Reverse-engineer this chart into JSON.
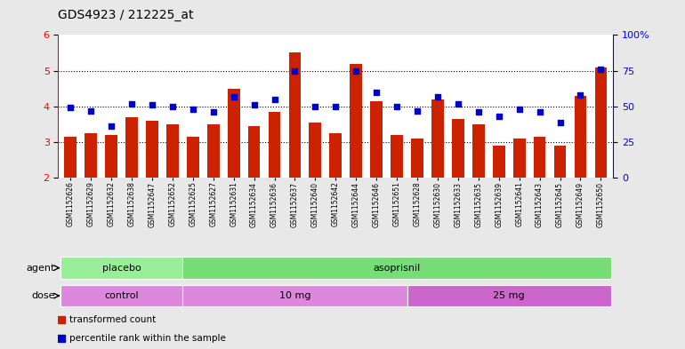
{
  "title": "GDS4923 / 212225_at",
  "samples": [
    "GSM1152626",
    "GSM1152629",
    "GSM1152632",
    "GSM1152638",
    "GSM1152647",
    "GSM1152652",
    "GSM1152625",
    "GSM1152627",
    "GSM1152631",
    "GSM1152634",
    "GSM1152636",
    "GSM1152637",
    "GSM1152640",
    "GSM1152642",
    "GSM1152644",
    "GSM1152646",
    "GSM1152651",
    "GSM1152628",
    "GSM1152630",
    "GSM1152633",
    "GSM1152635",
    "GSM1152639",
    "GSM1152641",
    "GSM1152643",
    "GSM1152645",
    "GSM1152649",
    "GSM1152650"
  ],
  "red_values": [
    3.15,
    3.25,
    3.2,
    3.7,
    3.6,
    3.5,
    3.15,
    3.5,
    4.5,
    3.45,
    3.85,
    5.5,
    3.55,
    3.25,
    5.2,
    4.15,
    3.2,
    3.1,
    4.2,
    3.65,
    3.5,
    2.9,
    3.1,
    3.15,
    2.9,
    4.3,
    5.1
  ],
  "blue_values": [
    49,
    47,
    36,
    52,
    51,
    50,
    48,
    46,
    57,
    51,
    55,
    75,
    50,
    50,
    75,
    60,
    50,
    47,
    57,
    52,
    46,
    43,
    48,
    46,
    39,
    58,
    76
  ],
  "ylim_left": [
    2,
    6
  ],
  "ylim_right": [
    0,
    100
  ],
  "yticks_left": [
    2,
    3,
    4,
    5,
    6
  ],
  "yticks_right": [
    0,
    25,
    50,
    75,
    100
  ],
  "bar_color": "#cc2200",
  "dot_color": "#0000cc",
  "background_color": "#e8e8e8",
  "plot_bg_color": "#ffffff",
  "agent_groups": [
    {
      "label": "placebo",
      "start": 0,
      "end": 6,
      "color": "#99ee99"
    },
    {
      "label": "asoprisnil",
      "start": 6,
      "end": 27,
      "color": "#77dd77"
    }
  ],
  "dose_groups": [
    {
      "label": "control",
      "start": 0,
      "end": 6,
      "color": "#dd88dd"
    },
    {
      "label": "10 mg",
      "start": 6,
      "end": 17,
      "color": "#dd88dd"
    },
    {
      "label": "25 mg",
      "start": 17,
      "end": 27,
      "color": "#cc66cc"
    }
  ],
  "legend_red": "transformed count",
  "legend_blue": "percentile rank within the sample",
  "agent_label": "agent",
  "dose_label": "dose"
}
